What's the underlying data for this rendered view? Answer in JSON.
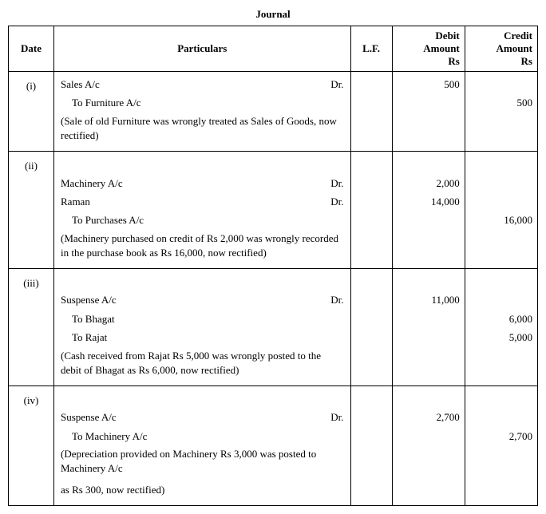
{
  "title": "Journal",
  "columns": {
    "date": "Date",
    "particulars": "Particulars",
    "lf": "L.F.",
    "debit_l1": "Debit",
    "debit_l2": "Amount",
    "debit_l3": "Rs",
    "credit_l1": "Credit",
    "credit_l2": "Amount",
    "credit_l3": "Rs"
  },
  "entries": [
    {
      "date": "(i)",
      "lines": [
        {
          "text": "Sales A/c",
          "dr": "Dr.",
          "indent": false
        },
        {
          "text": "To Furniture A/c",
          "dr": "",
          "indent": true
        }
      ],
      "narration": "(Sale of old Furniture was wrongly treated as Sales of Goods, now rectified)",
      "debits": [
        "500",
        ""
      ],
      "credits": [
        "",
        "500"
      ]
    },
    {
      "date": "(ii)",
      "lines": [
        {
          "text": "Machinery A/c",
          "dr": "Dr.",
          "indent": false
        },
        {
          "text": "Raman",
          "dr": "Dr.",
          "indent": false
        },
        {
          "text": "To Purchases A/c",
          "dr": "",
          "indent": true
        }
      ],
      "narration": "(Machinery purchased on credit of Rs 2,000 was wrongly recorded in the purchase book as Rs 16,000, now rectified)",
      "debits": [
        "2,000",
        "14,000",
        ""
      ],
      "credits": [
        "",
        "",
        "16,000"
      ]
    },
    {
      "date": "(iii)",
      "lines": [
        {
          "text": "Suspense A/c",
          "dr": "Dr.",
          "indent": false
        },
        {
          "text": "To Bhagat",
          "dr": "",
          "indent": true
        },
        {
          "text": "To Rajat",
          "dr": "",
          "indent": true
        }
      ],
      "narration": "(Cash received from Rajat Rs 5,000 was wrongly posted to the debit of Bhagat as Rs 6,000, now rectified)",
      "debits": [
        "11,000",
        "",
        ""
      ],
      "credits": [
        "",
        "6,000",
        "5,000"
      ]
    },
    {
      "date": "(iv)",
      "lines": [
        {
          "text": "Suspense A/c",
          "dr": "Dr.",
          "indent": false
        },
        {
          "text": "To Machinery A/c",
          "dr": "",
          "indent": true
        }
      ],
      "narration": "(Depreciation provided on Machinery Rs 3,000 was posted to Machinery A/c",
      "narration2": "as Rs 300, now rectified)",
      "debits": [
        "2,700",
        ""
      ],
      "credits": [
        "",
        "2,700"
      ]
    }
  ]
}
